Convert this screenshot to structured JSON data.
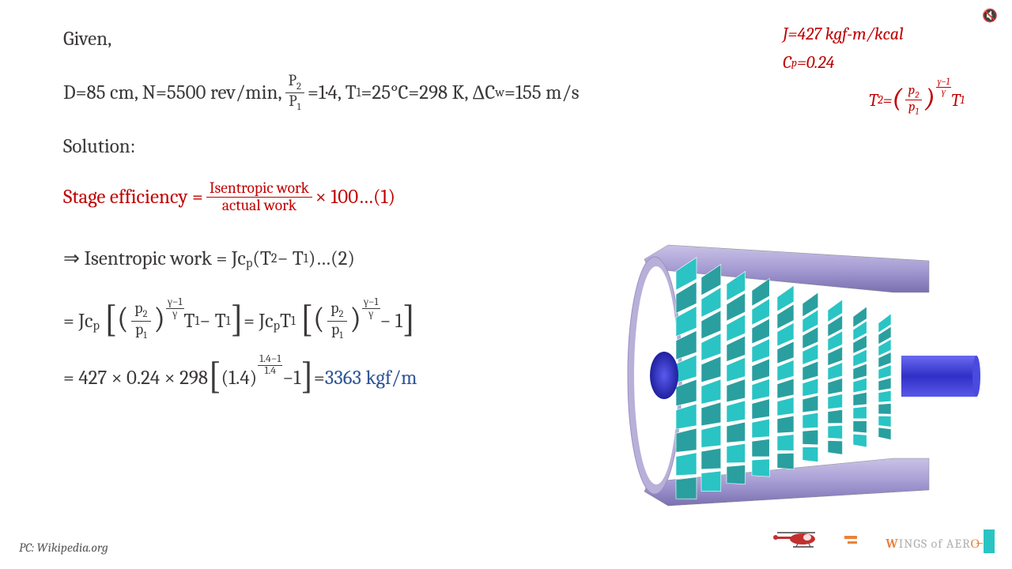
{
  "content": {
    "given_label": "Given,",
    "param_line": {
      "D_label": "D=85 cm, N=5500 rev/min, ",
      "pr_num": "P",
      "pr_num_sub": "2",
      "pr_den": "P",
      "pr_den_sub": "1",
      "pr_eq": "=1·4, T",
      "t1_sub": "1",
      "t1_val": "=25°C=298 K, ΔC",
      "dcw_sub": "w",
      "dcw_val": "=155 m/s"
    },
    "solution_label": "Solution:",
    "stage_eff": {
      "lhs": "Stage efficiency = ",
      "num": "Isentropic work",
      "den": "actual work",
      "rhs": " × 100…(1)"
    },
    "iso_work": {
      "arrow": "⇒ Isentropic work = Jc",
      "p_sub": "p",
      "paren": "(T",
      "t2": "2",
      "minus": " − T",
      "t1": "1",
      "end": ")…(2)"
    },
    "expand_line": {
      "pre": "= Jc",
      "p_sub": "p",
      "p2": "p",
      "p2s": "2",
      "p1": "p",
      "p1s": "1",
      "exp_n": "γ−1",
      "exp_d": "γ",
      "t1": " T",
      "t1s": "1",
      "minus": " − T",
      "t1s2": "1",
      "mid": " = Jc",
      "t1_out": "T",
      "minus1": " − 1"
    },
    "numeric_line": {
      "calc": "= 427 × 0.24 × 298 ",
      "base": "(1.4)",
      "exp_n": "1.4−1",
      "exp_d": "1.4",
      "minus1": "−1",
      "eq": " = ",
      "result": "3363 kgf/m"
    }
  },
  "sidebox": {
    "J": "J=427 kgf-m/kcal",
    "Cp_lhs": "C",
    "Cp_sub": "p",
    "Cp_val": "=0.24",
    "T2": "T",
    "T2_sub": "2",
    "eq": " = ",
    "p2": "p",
    "p2s": "2",
    "p1": "p",
    "p1s": "1",
    "exp_n": "γ−1",
    "exp_d": "γ",
    "T1": "  T",
    "T1_sub": "1"
  },
  "footer": {
    "pc": "PC: Wikipedia.org",
    "logo_w": "W",
    "logo_rest": "INGS of AER",
    "logo_o": "O̶"
  },
  "colors": {
    "text": "#3b3838",
    "red": "#c00000",
    "blue": "#2f5597",
    "casing": "#b8b0d8",
    "casing_dark": "#6e64a8",
    "blade1": "#2ac4c4",
    "blade2": "#2a9f9f",
    "blade_edge": "#ffffff",
    "shaft": "#3a3ad6",
    "hub": "#2e2ec0",
    "heli_body": "#c23030",
    "heli_skid": "#404040"
  }
}
